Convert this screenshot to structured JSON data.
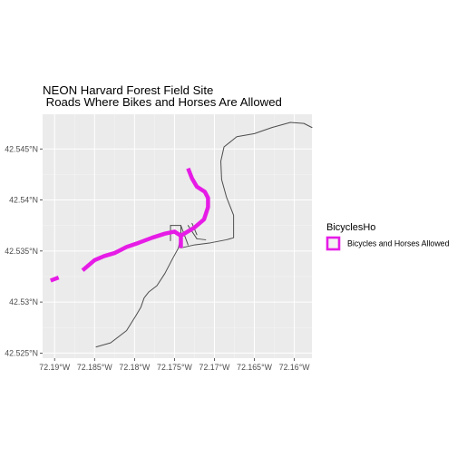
{
  "chart_data": {
    "type": "line",
    "title": "NEON Harvard Forest Field Site",
    "subtitle": " Roads Where Bikes and Horses Are Allowed",
    "xlabel": "",
    "ylabel": "",
    "xlim": [
      -72.1915,
      -72.1578
    ],
    "ylim": [
      42.5245,
      42.5484
    ],
    "x_ticks": [
      -72.19,
      -72.185,
      -72.18,
      -72.175,
      -72.17,
      -72.165,
      -72.16
    ],
    "x_tick_labels": [
      "72.19°W",
      "72.185°W",
      "72.18°W",
      "72.175°W",
      "72.17°W",
      "72.165°W",
      "72.16°W"
    ],
    "y_ticks": [
      42.525,
      42.53,
      42.535,
      42.54,
      42.545
    ],
    "y_tick_labels": [
      "42.525°N",
      "42.53°N",
      "42.535°N",
      "42.54°N",
      "42.545°N"
    ],
    "grid": true,
    "legend": {
      "title": "BicyclesHo",
      "placement": "right",
      "entries": [
        {
          "label": "Bicycles and Horses Allowed",
          "color": "#E61CE6"
        }
      ]
    },
    "colors": {
      "panel": "#EBEBEB",
      "grid_major": "#FFFFFF",
      "grid_minor": "#F5F5F5",
      "roads": "#4D4D4D",
      "highlight": "#E61CE6"
    },
    "series": [
      {
        "name": "Bicycles and Horses Allowed",
        "color": "#E61CE6",
        "width": 4.5,
        "paths": [
          [
            [
              -72.1905,
              42.5321
            ],
            [
              -72.1895,
              42.5324
            ]
          ],
          [
            [
              -72.1865,
              42.5331
            ],
            [
              -72.185,
              42.5341
            ],
            [
              -72.1838,
              42.5345
            ],
            [
              -72.1825,
              42.5348
            ],
            [
              -72.181,
              42.5354
            ],
            [
              -72.1795,
              42.5358
            ],
            [
              -72.1778,
              42.5363
            ],
            [
              -72.1762,
              42.5367
            ],
            [
              -72.175,
              42.5369
            ],
            [
              -72.1742,
              42.5365
            ],
            [
              -72.1742,
              42.5353
            ]
          ],
          [
            [
              -72.1742,
              42.5365
            ],
            [
              -72.1725,
              42.5373
            ],
            [
              -72.1713,
              42.5381
            ],
            [
              -72.1708,
              42.5393
            ],
            [
              -72.1708,
              42.5402
            ],
            [
              -72.1712,
              42.5408
            ],
            [
              -72.1722,
              42.5413
            ],
            [
              -72.1728,
              42.5421
            ],
            [
              -72.1733,
              42.5431
            ]
          ]
        ]
      },
      {
        "name": "roads",
        "color": "#4D4D4D",
        "width": 1.0,
        "paths": [
          [
            [
              -72.1848,
              42.5256
            ],
            [
              -72.183,
              42.526
            ],
            [
              -72.181,
              42.5272
            ],
            [
              -72.1798,
              42.5287
            ],
            [
              -72.1792,
              42.5295
            ],
            [
              -72.1788,
              42.5304
            ],
            [
              -72.1782,
              42.531
            ],
            [
              -72.1772,
              42.5316
            ],
            [
              -72.1762,
              42.5328
            ],
            [
              -72.1752,
              42.5343
            ],
            [
              -72.1745,
              42.5353
            ],
            [
              -72.1742,
              42.5365
            ],
            [
              -72.1742,
              42.5375
            ]
          ],
          [
            [
              -72.1742,
              42.5353
            ],
            [
              -72.1725,
              42.5356
            ],
            [
              -72.1705,
              42.5358
            ],
            [
              -72.1685,
              42.5361
            ],
            [
              -72.1676,
              42.5363
            ],
            [
              -72.1676,
              42.5385
            ],
            [
              -72.1685,
              42.5403
            ],
            [
              -72.1691,
              42.542
            ],
            [
              -72.1692,
              42.5438
            ],
            [
              -72.1688,
              42.5452
            ],
            [
              -72.1672,
              42.5462
            ],
            [
              -72.165,
              42.5465
            ],
            [
              -72.1628,
              42.5471
            ],
            [
              -72.1605,
              42.5476
            ],
            [
              -72.1588,
              42.5475
            ],
            [
              -72.1578,
              42.5471
            ]
          ],
          [
            [
              -72.1755,
              42.5375
            ],
            [
              -72.1742,
              42.5375
            ],
            [
              -72.1733,
              42.5356
            ]
          ],
          [
            [
              -72.1755,
              42.5375
            ],
            [
              -72.1755,
              42.536
            ]
          ],
          [
            [
              -72.1733,
              42.5375
            ],
            [
              -72.1722,
              42.5362
            ]
          ],
          [
            [
              -72.1722,
              42.5362
            ],
            [
              -72.1711,
              42.5361
            ]
          ],
          [
            [
              -72.1728,
              42.5377
            ],
            [
              -72.1722,
              42.5366
            ]
          ]
        ]
      }
    ]
  }
}
